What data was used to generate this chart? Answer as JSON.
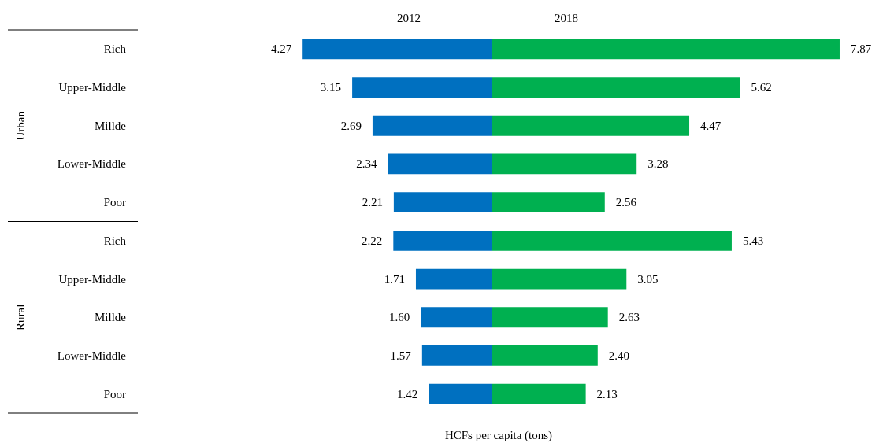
{
  "chart_data": [
    {
      "type": "bar",
      "orientation": "horizontal",
      "tick_labels": "y",
      "categories": [
        "Rich",
        "Upper-Middle",
        "Millde",
        "Lower-Middle",
        "Poor",
        "Rich",
        "Upper-Middle",
        "Millde",
        "Lower-Middle",
        "Poor"
      ],
      "annotations": [
        "Urban",
        "Rural"
      ],
      "series": [
        {
          "name": "2012",
          "color": "#0070c0",
          "values": [
            4.27,
            3.15,
            2.69,
            2.34,
            2.21,
            2.22,
            1.71,
            1.6,
            1.57,
            1.42
          ],
          "value_labels": [
            "4.27",
            "3.15",
            "2.69",
            "2.34",
            "2.21",
            "2.22",
            "1.71",
            "1.60",
            "1.57",
            "1.42"
          ]
        }
      ]
    },
    {
      "type": "bar",
      "orientation": "horizontal",
      "tick_labels": false,
      "xlabel": "HCFs per capita (tons)",
      "categories": [
        null,
        null,
        null,
        null,
        null,
        null,
        null,
        null,
        null,
        null
      ],
      "series": [
        {
          "name": "2018",
          "color": "#00b050",
          "values": [
            7.87,
            5.62,
            4.47,
            3.28,
            2.56,
            5.43,
            3.05,
            2.63,
            2.4,
            2.13
          ],
          "value_labels": [
            "7.87",
            "5.62",
            "4.47",
            "3.28",
            "2.56",
            "5.43",
            "3.05",
            "2.63",
            "2.40",
            "2.13"
          ]
        }
      ]
    }
  ]
}
